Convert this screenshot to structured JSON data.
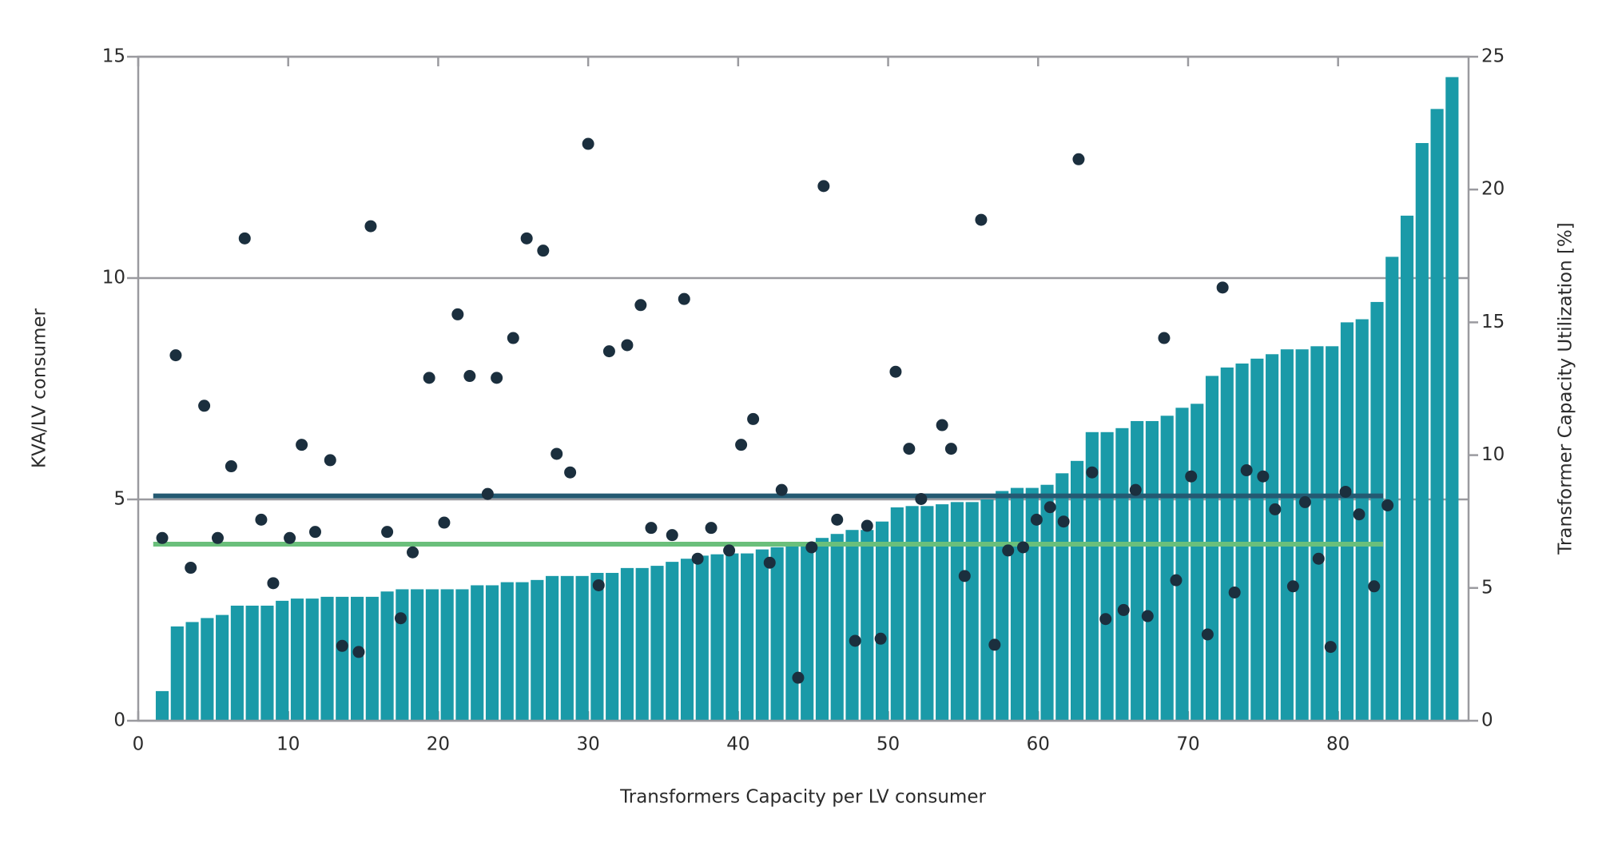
{
  "chart_data": {
    "type": "combo",
    "xlabel": "Transformers Capacity per LV consumer",
    "ylabel": "KVA/LV consumer",
    "y2label": "Transformer Capacity Utilization [%]",
    "xlim": [
      0,
      88.7
    ],
    "xticks": [
      0,
      10,
      20,
      30,
      40,
      50,
      60,
      70,
      80
    ],
    "ylim": [
      0,
      15
    ],
    "yticks": [
      0,
      5,
      10,
      15
    ],
    "y2lim": [
      0,
      25
    ],
    "y2ticks": [
      0,
      5,
      10,
      15,
      20,
      25
    ],
    "grid": true,
    "series": [
      {
        "type": "bar",
        "color": "#1a9aa8",
        "x": [
          1.6,
          2.6,
          3.6,
          4.6,
          5.6,
          6.6,
          7.6,
          8.6,
          9.6,
          10.6,
          11.6,
          12.6,
          13.6,
          14.6,
          15.6,
          16.6,
          17.6,
          18.6,
          19.6,
          20.6,
          21.6,
          22.6,
          23.6,
          24.6,
          25.6,
          26.6,
          27.6,
          28.6,
          29.6,
          30.6,
          31.6,
          32.6,
          33.6,
          34.6,
          35.6,
          36.6,
          37.6,
          38.6,
          39.6,
          40.6,
          41.6,
          42.6,
          43.6,
          44.6,
          45.6,
          46.6,
          47.6,
          48.6,
          49.6,
          50.6,
          51.6,
          52.6,
          53.6,
          54.6,
          55.6,
          56.6,
          57.6,
          58.6,
          59.6,
          60.6,
          61.6,
          62.6,
          63.6,
          64.6,
          65.6,
          66.6,
          67.6,
          68.6,
          69.6,
          70.6,
          71.6,
          72.6,
          73.6,
          74.6,
          75.6,
          76.6,
          77.6,
          78.6,
          79.6,
          80.6,
          81.6,
          82.6,
          83.6,
          84.6,
          85.6,
          86.6,
          87.6
        ],
        "values": [
          0.67,
          2.13,
          2.23,
          2.32,
          2.39,
          2.6,
          2.6,
          2.6,
          2.71,
          2.76,
          2.76,
          2.8,
          2.8,
          2.8,
          2.8,
          2.92,
          2.97,
          2.97,
          2.97,
          2.97,
          2.97,
          3.06,
          3.06,
          3.13,
          3.13,
          3.18,
          3.27,
          3.27,
          3.27,
          3.34,
          3.34,
          3.45,
          3.45,
          3.5,
          3.59,
          3.66,
          3.73,
          3.76,
          3.78,
          3.78,
          3.87,
          3.92,
          3.99,
          4.03,
          4.13,
          4.22,
          4.31,
          4.31,
          4.5,
          4.82,
          4.85,
          4.85,
          4.89,
          4.94,
          4.94,
          5.0,
          5.19,
          5.26,
          5.26,
          5.33,
          5.59,
          5.87,
          6.52,
          6.52,
          6.61,
          6.77,
          6.77,
          6.89,
          7.07,
          7.16,
          7.79,
          7.98,
          8.07,
          8.18,
          8.28,
          8.39,
          8.39,
          8.46,
          8.46,
          9.0,
          9.07,
          9.46,
          10.48,
          11.41,
          13.05,
          13.82,
          14.54
        ]
      },
      {
        "type": "scatter",
        "axis": "y2",
        "color": "#1b2f3e",
        "x": [
          1.6,
          2.5,
          3.5,
          4.4,
          5.3,
          6.2,
          7.1,
          8.2,
          9.0,
          10.1,
          10.9,
          11.8,
          12.8,
          13.6,
          14.7,
          15.5,
          16.6,
          17.5,
          18.3,
          19.4,
          20.4,
          21.3,
          22.1,
          23.3,
          23.9,
          25.0,
          25.9,
          27.0,
          27.9,
          28.8,
          30.0,
          30.7,
          31.4,
          32.6,
          33.5,
          34.2,
          35.6,
          36.4,
          37.3,
          38.2,
          39.4,
          40.2,
          41.0,
          42.1,
          42.9,
          44.0,
          44.9,
          45.7,
          46.6,
          47.8,
          48.6,
          49.5,
          50.5,
          51.4,
          52.2,
          53.6,
          54.2,
          55.1,
          56.2,
          57.1,
          58.0,
          59.0,
          59.9,
          60.8,
          61.7,
          62.7,
          63.6,
          64.5,
          65.7,
          66.5,
          67.3,
          68.4,
          69.2,
          70.2,
          71.3,
          72.3,
          73.1,
          73.9,
          75.0,
          75.8,
          77.0,
          77.8,
          78.7,
          79.5,
          80.5,
          81.4,
          82.4,
          83.3
        ],
        "values": [
          6.88,
          13.76,
          5.76,
          11.86,
          6.88,
          9.58,
          18.16,
          7.57,
          5.18,
          6.88,
          10.39,
          7.11,
          9.81,
          2.82,
          2.59,
          18.62,
          7.11,
          3.86,
          6.34,
          12.91,
          7.46,
          15.3,
          12.98,
          8.54,
          12.91,
          14.41,
          18.16,
          17.7,
          10.05,
          9.35,
          21.72,
          5.1,
          13.91,
          14.14,
          15.65,
          7.26,
          6.99,
          15.88,
          6.1,
          7.26,
          6.41,
          10.39,
          11.36,
          5.95,
          8.69,
          1.62,
          6.53,
          20.13,
          7.57,
          3.01,
          7.34,
          3.09,
          13.14,
          10.24,
          8.35,
          11.13,
          10.24,
          5.45,
          18.86,
          2.86,
          6.41,
          6.53,
          7.57,
          8.04,
          7.5,
          21.14,
          9.35,
          3.83,
          4.17,
          8.69,
          3.94,
          14.41,
          5.29,
          9.2,
          3.25,
          16.31,
          4.83,
          9.43,
          9.2,
          7.96,
          5.06,
          8.23,
          6.1,
          2.78,
          8.62,
          7.77,
          5.06,
          8.11
        ]
      }
    ],
    "hlines": [
      {
        "value": 5.08,
        "color": "#245a72",
        "x": [
          1,
          83
        ]
      },
      {
        "value": 3.99,
        "color": "#6abf7b",
        "x": [
          1,
          83
        ]
      }
    ]
  }
}
